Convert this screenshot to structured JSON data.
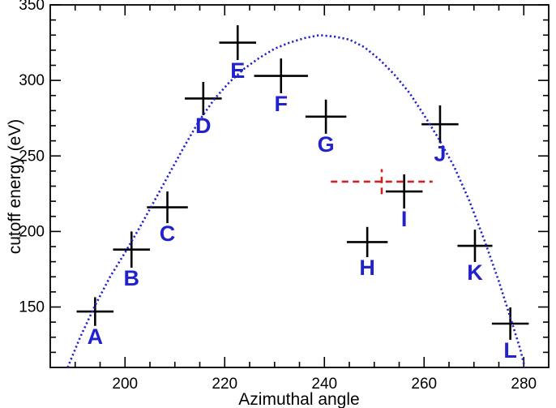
{
  "figure": {
    "background": "#ffffff",
    "frame_color": "#000000"
  },
  "chart_data": {
    "type": "scatter",
    "title": "",
    "xlabel": "Azimuthal angle",
    "ylabel": "cutoff energy (eV)",
    "xlim": [
      185,
      285
    ],
    "ylim": [
      110,
      350
    ],
    "x_major_ticks": [
      200,
      220,
      240,
      260,
      280
    ],
    "x_minor_step": 5,
    "y_major_ticks": [
      150,
      200,
      250,
      300,
      350
    ],
    "y_minor_step": 10,
    "grid": false,
    "legend": null,
    "point_color": "#000000",
    "label_color": "#2222cc",
    "points": [
      {
        "label": "A",
        "x": 194.0,
        "y": 147,
        "xerr": 3.7,
        "yerr": 9.5
      },
      {
        "label": "B",
        "x": 201.3,
        "y": 188,
        "xerr": 3.7,
        "yerr": 12.0
      },
      {
        "label": "C",
        "x": 208.5,
        "y": 216,
        "xerr": 4.1,
        "yerr": 10.5
      },
      {
        "label": "D",
        "x": 215.7,
        "y": 288,
        "xerr": 3.7,
        "yerr": 11.0
      },
      {
        "label": "E",
        "x": 222.6,
        "y": 325,
        "xerr": 3.7,
        "yerr": 11.5
      },
      {
        "label": "F",
        "x": 231.3,
        "y": 303,
        "xerr": 5.4,
        "yerr": 11.5
      },
      {
        "label": "G",
        "x": 240.3,
        "y": 276,
        "xerr": 4.1,
        "yerr": 11.3
      },
      {
        "label": "H",
        "x": 248.6,
        "y": 193,
        "xerr": 4.1,
        "yerr": 10.0
      },
      {
        "label": "I",
        "x": 256.0,
        "y": 226.5,
        "xerr": 3.7,
        "yerr": 11.3
      },
      {
        "label": "J",
        "x": 263.2,
        "y": 271,
        "xerr": 3.7,
        "yerr": 12.5
      },
      {
        "label": "K",
        "x": 270.2,
        "y": 190.5,
        "xerr": 3.5,
        "yerr": 10.7
      },
      {
        "label": "L",
        "x": 277.3,
        "y": 139,
        "xerr": 3.7,
        "yerr": 10.7
      }
    ],
    "reference_point": {
      "x": 251.5,
      "y": 233,
      "xerr": 10.2,
      "yerr": 8.3,
      "color": "#cc2222",
      "style": "dashed"
    },
    "fit_curve": {
      "color": "#2222cc",
      "style": "dotted",
      "points": [
        [
          188.5,
          110
        ],
        [
          191,
          130
        ],
        [
          194,
          151
        ],
        [
          197,
          170
        ],
        [
          200,
          186
        ],
        [
          203,
          203
        ],
        [
          206,
          221
        ],
        [
          209,
          239
        ],
        [
          212,
          257
        ],
        [
          215,
          274
        ],
        [
          218,
          288
        ],
        [
          221,
          299
        ],
        [
          224,
          308
        ],
        [
          227,
          315
        ],
        [
          230,
          321
        ],
        [
          233,
          325
        ],
        [
          236,
          328
        ],
        [
          239,
          330
        ],
        [
          242,
          329
        ],
        [
          245,
          327
        ],
        [
          248,
          322
        ],
        [
          251,
          314
        ],
        [
          254,
          304
        ],
        [
          257,
          292
        ],
        [
          260,
          277
        ],
        [
          263,
          261
        ],
        [
          266,
          243
        ],
        [
          269,
          221
        ],
        [
          272,
          195
        ],
        [
          275,
          167
        ],
        [
          277.5,
          141
        ],
        [
          279.3,
          122
        ],
        [
          280.2,
          110
        ]
      ]
    }
  }
}
